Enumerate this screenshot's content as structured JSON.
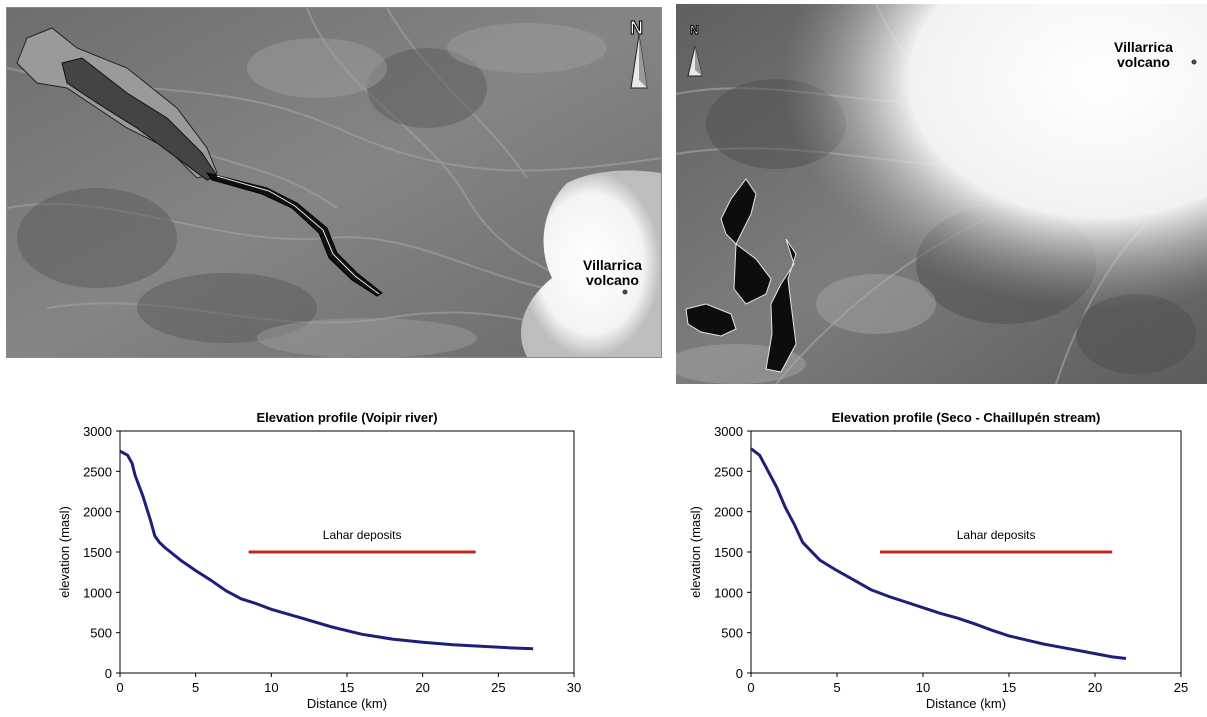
{
  "maps": {
    "left": {
      "volcano_label_line1": "Villarrica",
      "volcano_label_line2": "volcano",
      "north_label": "N"
    },
    "right": {
      "volcano_label_line1": "Villarrica",
      "volcano_label_line2": "volcano",
      "north_label": "N"
    }
  },
  "colors": {
    "profile_line": "#1f1f7a",
    "lahar_bar": "#c0281c",
    "axis": "#000000"
  },
  "chart_data": [
    {
      "type": "line",
      "title": "Elevation profile (Voipir river)",
      "xlabel": "Distance (km)",
      "ylabel": "elevation (masl)",
      "xlim": [
        0,
        30
      ],
      "ylim": [
        0,
        3000
      ],
      "xticks": [
        0,
        5,
        10,
        15,
        20,
        25,
        30
      ],
      "yticks": [
        0,
        500,
        1000,
        1500,
        2000,
        2500,
        3000
      ],
      "series": [
        {
          "x": [
            0,
            0.5,
            0.8,
            1,
            1.5,
            2,
            2.3,
            2.6,
            3,
            4,
            5,
            6,
            7,
            8,
            9,
            10,
            12,
            14,
            16,
            18,
            20,
            22,
            24,
            26,
            27.3
          ],
          "y": [
            2750,
            2700,
            2600,
            2450,
            2200,
            1900,
            1700,
            1620,
            1550,
            1400,
            1270,
            1150,
            1020,
            920,
            860,
            790,
            680,
            570,
            480,
            420,
            380,
            350,
            330,
            310,
            300
          ]
        }
      ],
      "annotations": [
        {
          "text": "Lahar deposits",
          "x_start": 8.5,
          "x_end": 23.5,
          "y": 1500
        }
      ]
    },
    {
      "type": "line",
      "title": "Elevation profile (Seco - Chaillupén  stream)",
      "xlabel": "Distance (km)",
      "ylabel": "elevation (masl)",
      "xlim": [
        0,
        25
      ],
      "ylim": [
        0,
        3000
      ],
      "xticks": [
        0,
        5,
        10,
        15,
        20,
        25
      ],
      "yticks": [
        0,
        500,
        1000,
        1500,
        2000,
        2500,
        3000
      ],
      "series": [
        {
          "x": [
            0,
            0.5,
            1,
            1.5,
            2,
            2.5,
            3,
            4,
            5,
            6,
            7,
            7.5,
            8,
            9,
            10,
            11,
            12,
            13,
            14,
            15,
            16,
            17,
            18,
            19,
            20,
            21,
            21.8
          ],
          "y": [
            2780,
            2700,
            2500,
            2300,
            2050,
            1850,
            1620,
            1400,
            1270,
            1150,
            1030,
            990,
            950,
            880,
            810,
            740,
            680,
            610,
            530,
            460,
            410,
            360,
            320,
            280,
            240,
            200,
            180
          ]
        }
      ],
      "annotations": [
        {
          "text": "Lahar deposits",
          "x_start": 7.5,
          "x_end": 21,
          "y": 1500
        }
      ]
    }
  ]
}
